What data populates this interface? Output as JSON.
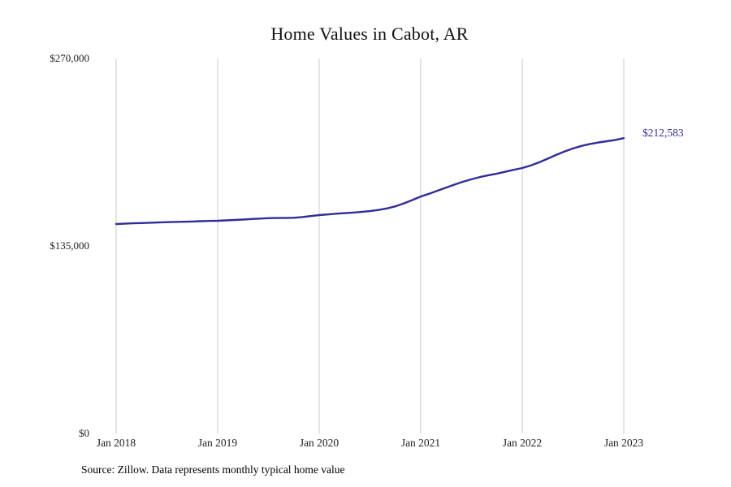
{
  "chart": {
    "title": "Home Values in Cabot, AR",
    "end_label": "$212,583",
    "source_note": "Source: Zillow. Data represents monthly typical home value",
    "y_ticks": [
      "$270,000",
      "$135,000",
      "$0"
    ],
    "x_ticks": [
      "Jan 2018",
      "Jan 2019",
      "Jan 2020",
      "Jan 2021",
      "Jan 2022",
      "Jan 2023"
    ],
    "line_color": "#2e2d9b",
    "grid_color": "#c9c9c9"
  },
  "chart_data": {
    "type": "line",
    "title": "Home Values in Cabot, AR",
    "series_name": "Monthly typical home value (Zillow)",
    "ylabel": "",
    "xlabel": "",
    "ylim": [
      0,
      270000
    ],
    "y_tick_values": [
      0,
      135000,
      270000
    ],
    "x_tick_labels": [
      "Jan 2018",
      "Jan 2019",
      "Jan 2020",
      "Jan 2021",
      "Jan 2022",
      "Jan 2023"
    ],
    "grid": "vertical-only",
    "legend": "none",
    "final_value_label": "$212,583",
    "source": "Source: Zillow. Data represents monthly typical home value",
    "x": [
      "2018-01",
      "2018-02",
      "2018-03",
      "2018-04",
      "2018-05",
      "2018-06",
      "2018-07",
      "2018-08",
      "2018-09",
      "2018-10",
      "2018-11",
      "2018-12",
      "2019-01",
      "2019-02",
      "2019-03",
      "2019-04",
      "2019-05",
      "2019-06",
      "2019-07",
      "2019-08",
      "2019-09",
      "2019-10",
      "2019-11",
      "2019-12",
      "2020-01",
      "2020-02",
      "2020-03",
      "2020-04",
      "2020-05",
      "2020-06",
      "2020-07",
      "2020-08",
      "2020-09",
      "2020-10",
      "2020-11",
      "2020-12",
      "2021-01",
      "2021-02",
      "2021-03",
      "2021-04",
      "2021-05",
      "2021-06",
      "2021-07",
      "2021-08",
      "2021-09",
      "2021-10",
      "2021-11",
      "2021-12",
      "2022-01",
      "2022-02",
      "2022-03",
      "2022-04",
      "2022-05",
      "2022-06",
      "2022-07",
      "2022-08",
      "2022-09",
      "2022-10",
      "2022-11",
      "2022-12",
      "2023-01"
    ],
    "values": [
      150800,
      151000,
      151300,
      151500,
      151700,
      151900,
      152100,
      152300,
      152400,
      152600,
      152800,
      153000,
      153100,
      153400,
      153700,
      154000,
      154400,
      154700,
      155000,
      155100,
      155100,
      155300,
      155800,
      156500,
      157200,
      157700,
      158200,
      158600,
      159000,
      159500,
      160100,
      160900,
      162000,
      163500,
      165600,
      168000,
      170600,
      172600,
      174800,
      177000,
      179200,
      181200,
      183000,
      184600,
      185900,
      187100,
      188400,
      189800,
      191100,
      192900,
      195200,
      197800,
      200500,
      203000,
      205200,
      207000,
      208400,
      209500,
      210400,
      211300,
      212583
    ]
  }
}
